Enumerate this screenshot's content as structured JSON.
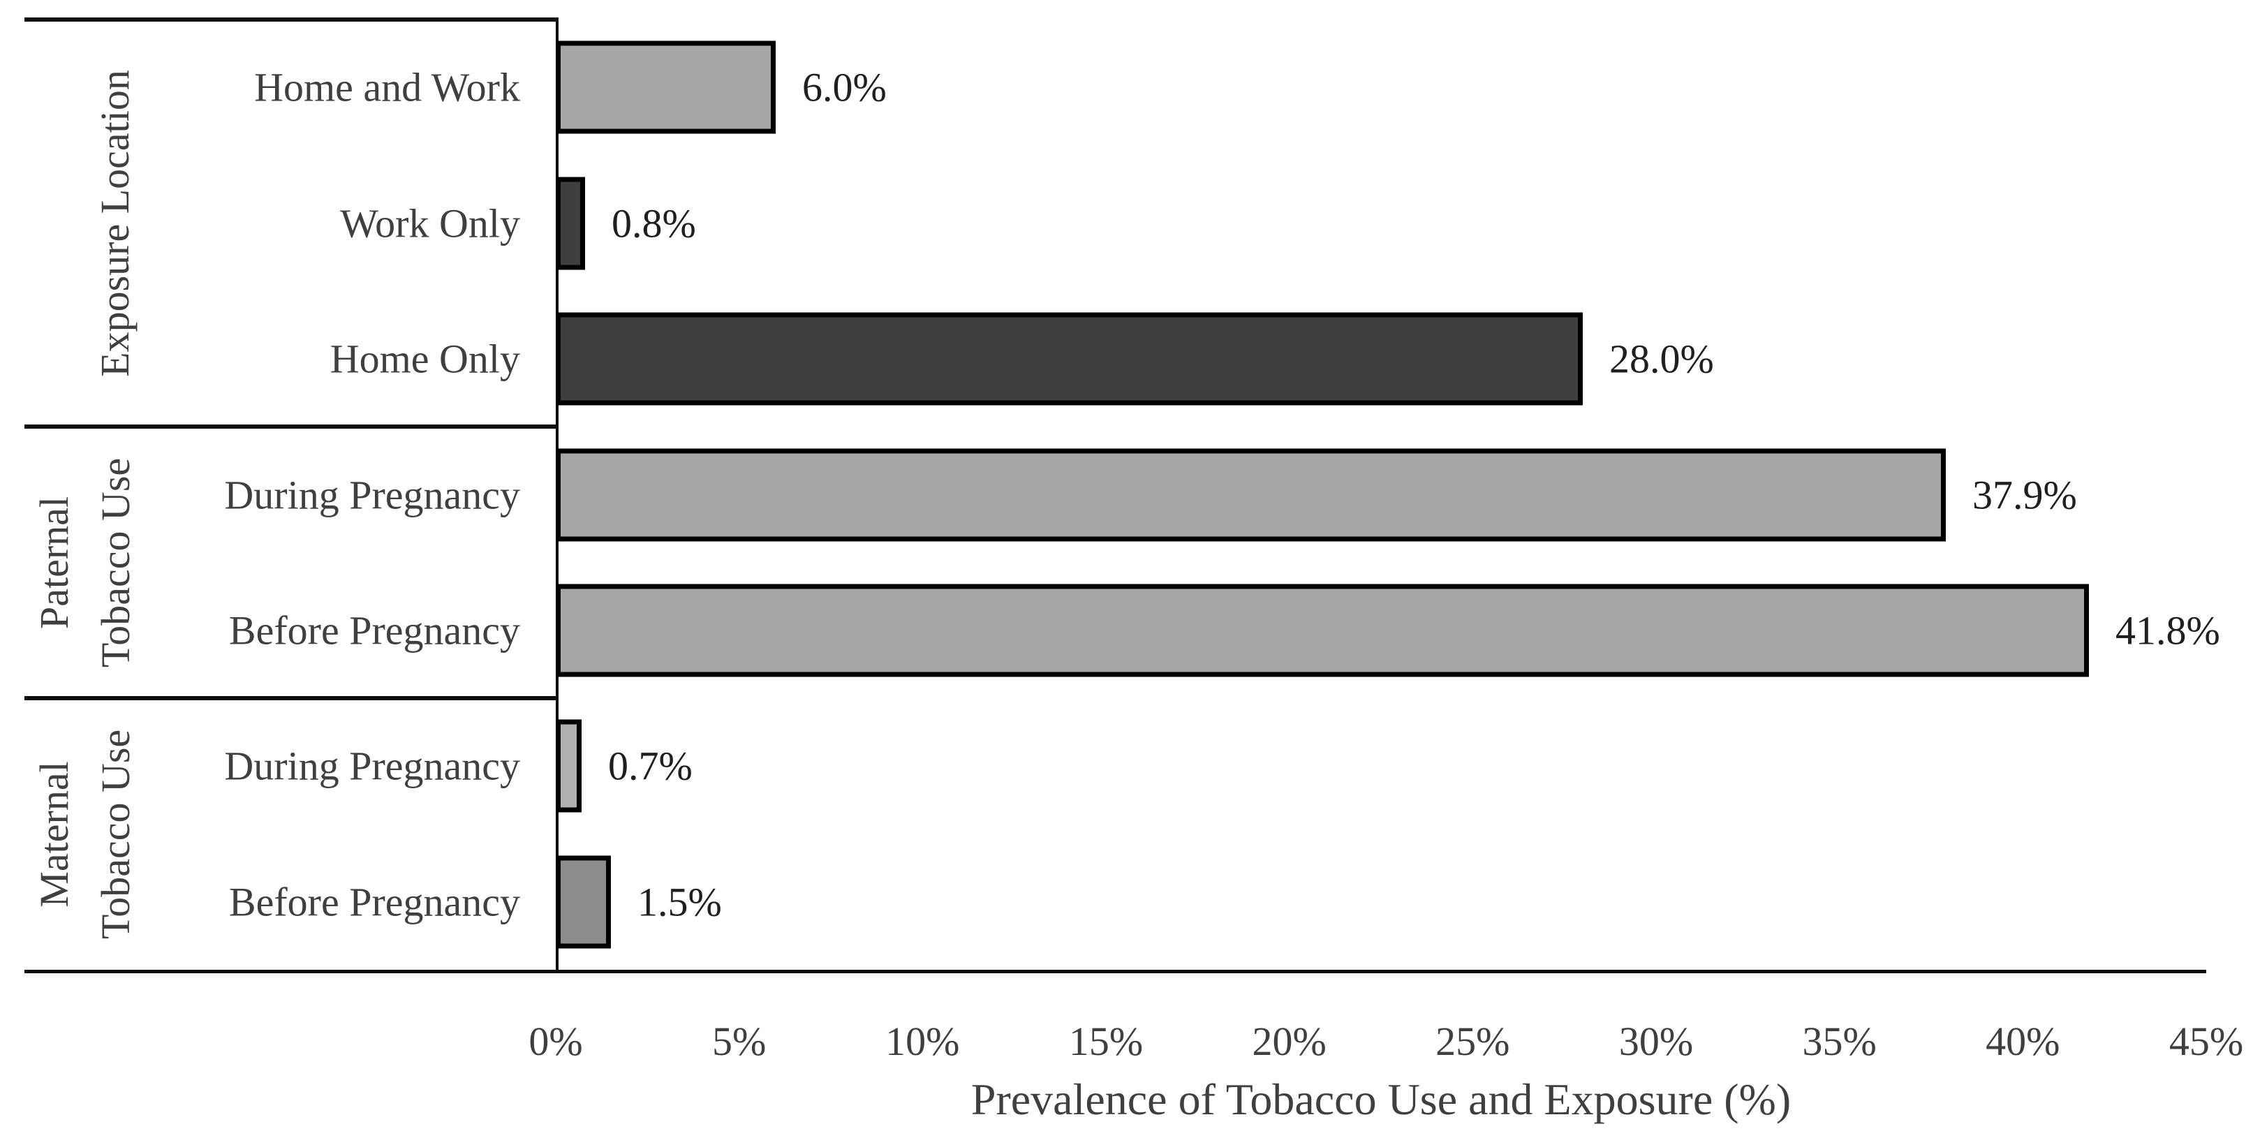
{
  "chart_data": {
    "type": "bar",
    "orientation": "horizontal",
    "xlabel": "Prevalence of Tobacco Use and Exposure (%)",
    "xlim": [
      0,
      45
    ],
    "x_tick_labels": [
      "0%",
      "5%",
      "10%",
      "15%",
      "20%",
      "25%",
      "30%",
      "35%",
      "40%",
      "45%"
    ],
    "grid": false,
    "legend": false,
    "groups": [
      {
        "label": "Exposure Location",
        "label_lines": [
          "Exposure Location"
        ],
        "bars": [
          {
            "category": "Home and Work",
            "value": 6.0,
            "value_label": "6.0%",
            "color": "#a6a6a6"
          },
          {
            "category": "Work Only",
            "value": 0.8,
            "value_label": "0.8%",
            "color": "#3f3f3f"
          },
          {
            "category": "Home Only",
            "value": 28.0,
            "value_label": "28.0%",
            "color": "#3f3f3f"
          }
        ]
      },
      {
        "label": "Paternal Tobacco Use",
        "label_lines": [
          "Paternal",
          "Tobacco Use"
        ],
        "bars": [
          {
            "category": "During Pregnancy",
            "value": 37.9,
            "value_label": "37.9%",
            "color": "#a6a6a6"
          },
          {
            "category": "Before Pregnancy",
            "value": 41.8,
            "value_label": "41.8%",
            "color": "#a6a6a6"
          }
        ]
      },
      {
        "label": "Maternal Tobacco Use",
        "label_lines": [
          "Maternal",
          "Tobacco Use"
        ],
        "bars": [
          {
            "category": "During Pregnancy",
            "value": 0.7,
            "value_label": "0.7%",
            "color": "#b0b0b0"
          },
          {
            "category": "Before Pregnancy",
            "value": 1.5,
            "value_label": "1.5%",
            "color": "#8c8c8c"
          }
        ]
      }
    ],
    "colors": {
      "bar_border": "#000000",
      "axis_line": "#0d0d0d",
      "text": "#3f3f3f",
      "value_text": "#1f1f1f",
      "background": "#ffffff"
    }
  }
}
